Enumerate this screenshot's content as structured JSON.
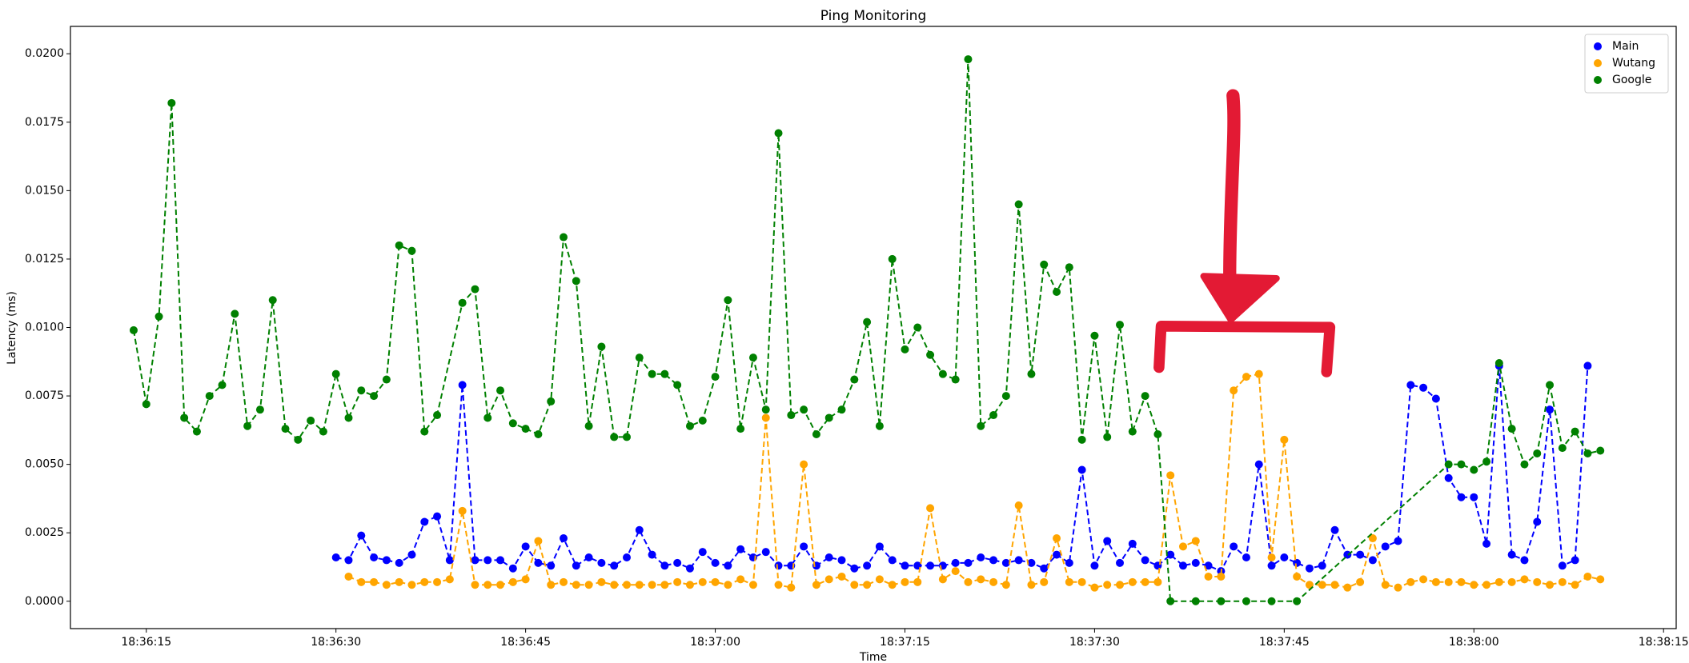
{
  "chart_data": {
    "type": "line",
    "title": "Ping Monitoring",
    "x_label": "Time",
    "y_label": "Latency (ms)",
    "xlim": [
      "18:36:09",
      "18:38:16"
    ],
    "xticks": [
      "18:36:15",
      "18:36:30",
      "18:36:45",
      "18:37:00",
      "18:37:15",
      "18:37:30",
      "18:37:45",
      "18:38:00",
      "18:38:15"
    ],
    "ylim": [
      -0.001,
      0.021
    ],
    "yticks": [
      {
        "value": 0,
        "label": "0.0000"
      },
      {
        "value": 0.0025,
        "label": "0.0025"
      },
      {
        "value": 0.005,
        "label": "0.0050"
      },
      {
        "value": 0.0075,
        "label": "0.0075"
      },
      {
        "value": 0.01,
        "label": "0.0100"
      },
      {
        "value": 0.0125,
        "label": "0.0125"
      },
      {
        "value": 0.015,
        "label": "0.0150"
      },
      {
        "value": 0.0175,
        "label": "0.0175"
      },
      {
        "value": 0.02,
        "label": "0.0200"
      }
    ],
    "grid": false,
    "legend": "upper right",
    "series": [
      {
        "name": "Main",
        "color": "#0000ff",
        "x": [
          "18:36:30",
          "18:36:31",
          "18:36:32",
          "18:36:33",
          "18:36:34",
          "18:36:35",
          "18:36:36",
          "18:36:37",
          "18:36:38",
          "18:36:39",
          "18:36:40",
          "18:36:41",
          "18:36:42",
          "18:36:43",
          "18:36:44",
          "18:36:45",
          "18:36:46",
          "18:36:47",
          "18:36:48",
          "18:36:49",
          "18:36:50",
          "18:36:51",
          "18:36:52",
          "18:36:53",
          "18:36:54",
          "18:36:55",
          "18:36:56",
          "18:36:57",
          "18:36:58",
          "18:36:59",
          "18:37:00",
          "18:37:01",
          "18:37:02",
          "18:37:03",
          "18:37:04",
          "18:37:05",
          "18:37:06",
          "18:37:07",
          "18:37:08",
          "18:37:09",
          "18:37:10",
          "18:37:11",
          "18:37:12",
          "18:37:13",
          "18:37:14",
          "18:37:15",
          "18:37:16",
          "18:37:17",
          "18:37:18",
          "18:37:19",
          "18:37:20",
          "18:37:21",
          "18:37:22",
          "18:37:23",
          "18:37:24",
          "18:37:25",
          "18:37:26",
          "18:37:27",
          "18:37:28",
          "18:37:29",
          "18:37:30",
          "18:37:31",
          "18:37:32",
          "18:37:33",
          "18:37:34",
          "18:37:35",
          "18:37:36",
          "18:37:37",
          "18:37:38",
          "18:37:39",
          "18:37:40",
          "18:37:41",
          "18:37:42",
          "18:37:43",
          "18:37:44",
          "18:37:45",
          "18:37:46",
          "18:37:47",
          "18:37:48",
          "18:37:49",
          "18:37:50",
          "18:37:51",
          "18:37:52",
          "18:37:53",
          "18:37:54",
          "18:37:55",
          "18:37:56",
          "18:37:57",
          "18:37:58",
          "18:37:59",
          "18:38:00",
          "18:38:01",
          "18:38:02",
          "18:38:03",
          "18:38:04",
          "18:38:05",
          "18:38:06",
          "18:38:07",
          "18:38:08",
          "18:38:09"
        ],
        "values": [
          0.0016,
          0.0015,
          0.0024,
          0.0016,
          0.0015,
          0.0014,
          0.0017,
          0.0029,
          0.0031,
          0.0015,
          0.0079,
          0.0015,
          0.0015,
          0.0015,
          0.0012,
          0.002,
          0.0014,
          0.0013,
          0.0023,
          0.0013,
          0.0016,
          0.0014,
          0.0013,
          0.0016,
          0.0026,
          0.0017,
          0.0013,
          0.0014,
          0.0012,
          0.0018,
          0.0014,
          0.0013,
          0.0019,
          0.0016,
          0.0018,
          0.0013,
          0.0013,
          0.002,
          0.0013,
          0.0016,
          0.0015,
          0.0012,
          0.0013,
          0.002,
          0.0015,
          0.0013,
          0.0013,
          0.0013,
          0.0013,
          0.0014,
          0.0014,
          0.0016,
          0.0015,
          0.0014,
          0.0015,
          0.0014,
          0.0012,
          0.0017,
          0.0014,
          0.0048,
          0.0013,
          0.0022,
          0.0014,
          0.0021,
          0.0015,
          0.0013,
          0.0017,
          0.0013,
          0.0014,
          0.0013,
          0.0011,
          0.002,
          0.0016,
          0.005,
          0.0013,
          0.0016,
          0.0014,
          0.0012,
          0.0013,
          0.0026,
          0.0017,
          0.0017,
          0.0015,
          0.002,
          0.0022,
          0.0079,
          0.0078,
          0.0074,
          0.0045,
          0.0038,
          0.0038,
          0.0021,
          0.0086,
          0.0017,
          0.0015,
          0.0029,
          0.007,
          0.0013,
          0.0015,
          0.0086
        ]
      },
      {
        "name": "Wutang",
        "color": "#ffa500",
        "x": [
          "18:36:31",
          "18:36:32",
          "18:36:33",
          "18:36:34",
          "18:36:35",
          "18:36:36",
          "18:36:37",
          "18:36:38",
          "18:36:39",
          "18:36:40",
          "18:36:41",
          "18:36:42",
          "18:36:43",
          "18:36:44",
          "18:36:45",
          "18:36:46",
          "18:36:47",
          "18:36:48",
          "18:36:49",
          "18:36:50",
          "18:36:51",
          "18:36:52",
          "18:36:53",
          "18:36:54",
          "18:36:55",
          "18:36:56",
          "18:36:57",
          "18:36:58",
          "18:36:59",
          "18:37:00",
          "18:37:01",
          "18:37:02",
          "18:37:03",
          "18:37:04",
          "18:37:05",
          "18:37:06",
          "18:37:07",
          "18:37:08",
          "18:37:09",
          "18:37:10",
          "18:37:11",
          "18:37:12",
          "18:37:13",
          "18:37:14",
          "18:37:15",
          "18:37:16",
          "18:37:17",
          "18:37:18",
          "18:37:19",
          "18:37:20",
          "18:37:21",
          "18:37:22",
          "18:37:23",
          "18:37:24",
          "18:37:25",
          "18:37:26",
          "18:37:27",
          "18:37:28",
          "18:37:29",
          "18:37:30",
          "18:37:31",
          "18:37:32",
          "18:37:33",
          "18:37:34",
          "18:37:35",
          "18:37:36",
          "18:37:37",
          "18:37:38",
          "18:37:39",
          "18:37:40",
          "18:37:41",
          "18:37:42",
          "18:37:43",
          "18:37:44",
          "18:37:45",
          "18:37:46",
          "18:37:47",
          "18:37:48",
          "18:37:49",
          "18:37:50",
          "18:37:51",
          "18:37:52",
          "18:37:53",
          "18:37:54",
          "18:37:55",
          "18:37:56",
          "18:37:57",
          "18:37:58",
          "18:37:59",
          "18:38:00",
          "18:38:01",
          "18:38:02",
          "18:38:03",
          "18:38:04",
          "18:38:05",
          "18:38:06",
          "18:38:07",
          "18:38:08",
          "18:38:09",
          "18:38:10"
        ],
        "values": [
          0.0009,
          0.0007,
          0.0007,
          0.0006,
          0.0007,
          0.0006,
          0.0007,
          0.0007,
          0.0008,
          0.0033,
          0.0006,
          0.0006,
          0.0006,
          0.0007,
          0.0008,
          0.0022,
          0.0006,
          0.0007,
          0.0006,
          0.0006,
          0.0007,
          0.0006,
          0.0006,
          0.0006,
          0.0006,
          0.0006,
          0.0007,
          0.0006,
          0.0007,
          0.0007,
          0.0006,
          0.0008,
          0.0006,
          0.0067,
          0.0006,
          0.0005,
          0.005,
          0.0006,
          0.0008,
          0.0009,
          0.0006,
          0.0006,
          0.0008,
          0.0006,
          0.0007,
          0.0007,
          0.0034,
          0.0008,
          0.0011,
          0.0007,
          0.0008,
          0.0007,
          0.0006,
          0.0035,
          0.0006,
          0.0007,
          0.0023,
          0.0007,
          0.0007,
          0.0005,
          0.0006,
          0.0006,
          0.0007,
          0.0007,
          0.0007,
          0.0046,
          0.002,
          0.0022,
          0.0009,
          0.0009,
          0.0077,
          0.0082,
          0.0083,
          0.0016,
          0.0059,
          0.0009,
          0.0006,
          0.0006,
          0.0006,
          0.0005,
          0.0007,
          0.0023,
          0.0006,
          0.0005,
          0.0007,
          0.0008,
          0.0007,
          0.0007,
          0.0007,
          0.0006,
          0.0006,
          0.0007,
          0.0007,
          0.0008,
          0.0007,
          0.0006,
          0.0007,
          0.0006,
          0.0009,
          0.0008
        ]
      },
      {
        "name": "Google",
        "color": "#008000",
        "x": [
          "18:36:14",
          "18:36:15",
          "18:36:16",
          "18:36:17",
          "18:36:18",
          "18:36:19",
          "18:36:20",
          "18:36:21",
          "18:36:22",
          "18:36:23",
          "18:36:24",
          "18:36:25",
          "18:36:26",
          "18:36:27",
          "18:36:28",
          "18:36:29",
          "18:36:30",
          "18:36:31",
          "18:36:32",
          "18:36:33",
          "18:36:34",
          "18:36:35",
          "18:36:36",
          "18:36:37",
          "18:36:38",
          "18:36:40",
          "18:36:41",
          "18:36:42",
          "18:36:43",
          "18:36:44",
          "18:36:45",
          "18:36:46",
          "18:36:47",
          "18:36:48",
          "18:36:49",
          "18:36:50",
          "18:36:51",
          "18:36:52",
          "18:36:53",
          "18:36:54",
          "18:36:55",
          "18:36:56",
          "18:36:57",
          "18:36:58",
          "18:36:59",
          "18:37:00",
          "18:37:01",
          "18:37:02",
          "18:37:03",
          "18:37:04",
          "18:37:05",
          "18:37:06",
          "18:37:07",
          "18:37:08",
          "18:37:09",
          "18:37:10",
          "18:37:11",
          "18:37:12",
          "18:37:13",
          "18:37:14",
          "18:37:15",
          "18:37:16",
          "18:37:17",
          "18:37:18",
          "18:37:19",
          "18:37:20",
          "18:37:21",
          "18:37:22",
          "18:37:23",
          "18:37:24",
          "18:37:25",
          "18:37:26",
          "18:37:27",
          "18:37:28",
          "18:37:29",
          "18:37:30",
          "18:37:31",
          "18:37:32",
          "18:37:33",
          "18:37:34",
          "18:37:35",
          "18:37:36",
          "18:37:38",
          "18:37:40",
          "18:37:42",
          "18:37:44",
          "18:37:46",
          "18:37:58",
          "18:37:59",
          "18:38:00",
          "18:38:01",
          "18:38:02",
          "18:38:03",
          "18:38:04",
          "18:38:05",
          "18:38:06",
          "18:38:07",
          "18:38:08",
          "18:38:09",
          "18:38:10"
        ],
        "values": [
          0.0099,
          0.0072,
          0.0104,
          0.0182,
          0.0067,
          0.0062,
          0.0075,
          0.0079,
          0.0105,
          0.0064,
          0.007,
          0.011,
          0.0063,
          0.0059,
          0.0066,
          0.0062,
          0.0083,
          0.0067,
          0.0077,
          0.0075,
          0.0081,
          0.013,
          0.0128,
          0.0062,
          0.0068,
          0.0109,
          0.0114,
          0.0067,
          0.0077,
          0.0065,
          0.0063,
          0.0061,
          0.0073,
          0.0133,
          0.0117,
          0.0064,
          0.0093,
          0.006,
          0.006,
          0.0089,
          0.0083,
          0.0083,
          0.0079,
          0.0064,
          0.0066,
          0.0082,
          0.011,
          0.0063,
          0.0089,
          0.007,
          0.0171,
          0.0068,
          0.007,
          0.0061,
          0.0067,
          0.007,
          0.0081,
          0.0102,
          0.0064,
          0.0125,
          0.0092,
          0.01,
          0.009,
          0.0083,
          0.0081,
          0.0198,
          0.0064,
          0.0068,
          0.0075,
          0.0145,
          0.0083,
          0.0123,
          0.0113,
          0.0122,
          0.0059,
          0.0097,
          0.006,
          0.0101,
          0.0062,
          0.0075,
          0.0061,
          0,
          0,
          0,
          0,
          0,
          0,
          0.005,
          0.005,
          0.0048,
          0.0051,
          0.0087,
          0.0063,
          0.005,
          0.0054,
          0.0079,
          0.0056,
          0.0062,
          0.0054,
          0.0055
        ]
      }
    ]
  }
}
